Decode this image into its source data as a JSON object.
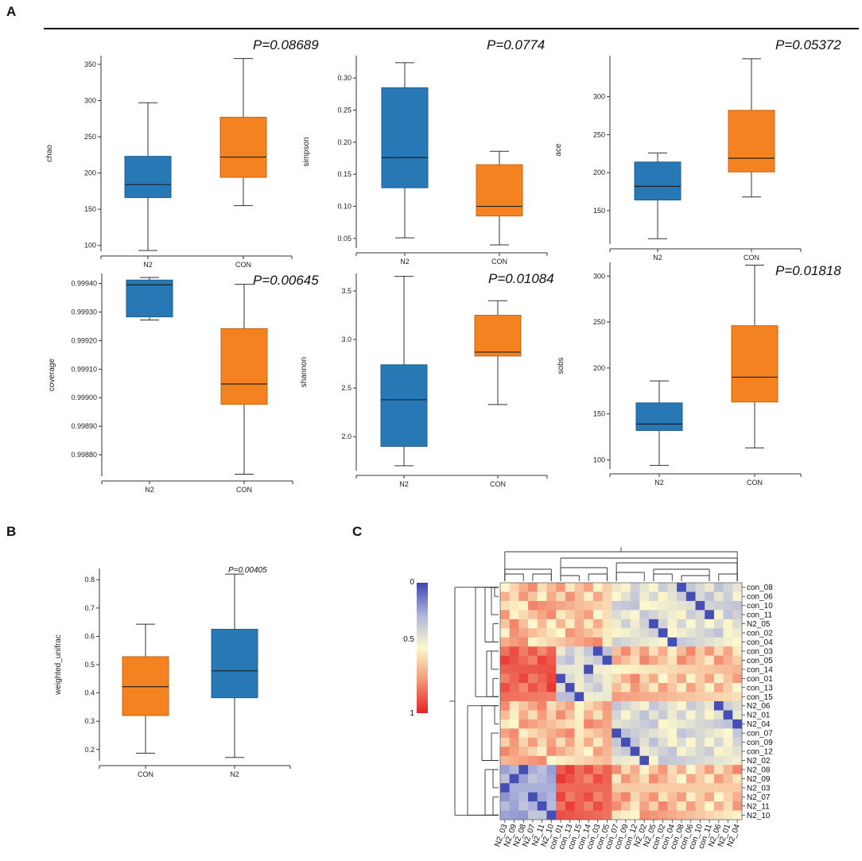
{
  "panel_labels": {
    "A": "A",
    "B": "B",
    "C": "C"
  },
  "colors": {
    "n2": "#2878b5",
    "con": "#f58220",
    "n2_edge": "#1f5e91",
    "con_edge": "#c8650f",
    "axis": "#333333"
  },
  "chart_data": [
    {
      "type": "box",
      "id": "chao",
      "ylabel": "chao",
      "pvalue": "P=0.08689",
      "categories": [
        "N2",
        "CON"
      ],
      "ylim": [
        92,
        362
      ],
      "yticks": [
        100,
        150,
        200,
        250,
        300,
        350
      ],
      "series": [
        {
          "name": "N2",
          "min": 93,
          "q1": 166,
          "median": 184,
          "q3": 223,
          "max": 297
        },
        {
          "name": "CON",
          "min": 155,
          "q1": 194,
          "median": 222,
          "q3": 277,
          "max": 358
        }
      ]
    },
    {
      "type": "box",
      "id": "simpson",
      "ylabel": "simpson",
      "pvalue": "P=0.0774",
      "categories": [
        "N2",
        "CON"
      ],
      "ylim": [
        0.035,
        0.335
      ],
      "yticks": [
        0.05,
        0.1,
        0.15,
        0.2,
        0.25,
        0.3
      ],
      "ytick_labels": [
        "0.05",
        "0.10",
        "0.15",
        "0.20",
        "0.25",
        "0.30"
      ],
      "series": [
        {
          "name": "N2",
          "min": 0.051,
          "q1": 0.129,
          "median": 0.176,
          "q3": 0.285,
          "max": 0.324
        },
        {
          "name": "CON",
          "min": 0.04,
          "q1": 0.085,
          "median": 0.1,
          "q3": 0.165,
          "max": 0.186
        }
      ]
    },
    {
      "type": "box",
      "id": "ace",
      "ylabel": "ace",
      "pvalue": "P=0.05372",
      "categories": [
        "N2",
        "CON"
      ],
      "ylim": [
        106,
        354
      ],
      "yticks": [
        150,
        200,
        250,
        300
      ],
      "series": [
        {
          "name": "N2",
          "min": 113,
          "q1": 164,
          "median": 182,
          "q3": 214,
          "max": 226
        },
        {
          "name": "CON",
          "min": 168,
          "q1": 201,
          "median": 219,
          "q3": 282,
          "max": 350
        }
      ]
    },
    {
      "type": "box",
      "id": "coverage",
      "ylabel": "coverage",
      "pvalue": "P=0.00645",
      "categories": [
        "N2",
        "CON"
      ],
      "ylim": [
        0.998725,
        0.999435
      ],
      "yticks": [
        0.9988,
        0.9989,
        0.999,
        0.9991,
        0.9992,
        0.9993,
        0.9994
      ],
      "ytick_labels": [
        "0.99880",
        "0.99890",
        "0.99900",
        "0.99910",
        "0.99920",
        "0.99930",
        "0.99940"
      ],
      "series": [
        {
          "name": "N2",
          "min": 0.999272,
          "q1": 0.999283,
          "median": 0.999395,
          "q3": 0.999412,
          "max": 0.999421
        },
        {
          "name": "CON",
          "min": 0.998732,
          "q1": 0.998977,
          "median": 0.999048,
          "q3": 0.999242,
          "max": 0.999397
        }
      ]
    },
    {
      "type": "box",
      "id": "shannon",
      "ylabel": "shannon",
      "pvalue": "P=0.01084",
      "categories": [
        "N2",
        "CON"
      ],
      "ylim": [
        1.65,
        3.68
      ],
      "yticks": [
        2.0,
        2.5,
        3.0,
        3.5
      ],
      "ytick_labels": [
        "2.0",
        "2.5",
        "3.0",
        "3.5"
      ],
      "series": [
        {
          "name": "N2",
          "min": 1.7,
          "q1": 1.9,
          "median": 2.38,
          "q3": 2.74,
          "max": 3.65
        },
        {
          "name": "CON",
          "min": 2.33,
          "q1": 2.83,
          "median": 2.87,
          "q3": 3.25,
          "max": 3.4
        }
      ]
    },
    {
      "type": "box",
      "id": "sobs",
      "ylabel": "sobs",
      "pvalue": "P=0.01818",
      "categories": [
        "N2",
        "CON"
      ],
      "ylim": [
        90,
        315
      ],
      "yticks": [
        100,
        150,
        200,
        250,
        300
      ],
      "series": [
        {
          "name": "N2",
          "min": 94,
          "q1": 132,
          "median": 139,
          "q3": 162,
          "max": 186
        },
        {
          "name": "CON",
          "min": 113,
          "q1": 163,
          "median": 190,
          "q3": 246,
          "max": 312
        }
      ]
    },
    {
      "type": "box",
      "id": "weighted_unifrac",
      "ylabel": "weighted_unifrac",
      "pvalue": "P=0.00405",
      "categories": [
        "CON",
        "N2"
      ],
      "ylim": [
        0.16,
        0.84
      ],
      "yticks": [
        0.2,
        0.3,
        0.4,
        0.5,
        0.6,
        0.7,
        0.8
      ],
      "ytick_labels": [
        "0.2",
        "0.3",
        "0.4",
        "0.5",
        "0.6",
        "0.7",
        "0.8"
      ],
      "series": [
        {
          "name": "CON",
          "min": 0.187,
          "q1": 0.32,
          "median": 0.422,
          "q3": 0.528,
          "max": 0.643
        },
        {
          "name": "N2",
          "min": 0.172,
          "q1": 0.383,
          "median": 0.478,
          "q3": 0.625,
          "max": 0.82
        }
      ]
    },
    {
      "type": "heatmap",
      "id": "distance_heatmap",
      "legend_ticks": [
        "0",
        "0.5",
        "1"
      ],
      "row_labels": [
        "con_08",
        "con_06",
        "con_10",
        "con_11",
        "N2_05",
        "con_02",
        "con_04",
        "con_03",
        "con_05",
        "con_14",
        "con_01",
        "con_13",
        "con_15",
        "N2_06",
        "N2_01",
        "N2_04",
        "con_07",
        "con_09",
        "con_12",
        "N2_02",
        "N2_08",
        "N2_09",
        "N2_03",
        "N2_07",
        "N2_11",
        "N2_10"
      ],
      "col_labels": [
        "N2_03",
        "N2_09",
        "N2_08",
        "N2_07",
        "N2_11",
        "N2_10",
        "con_01",
        "con_13",
        "con_15",
        "con_14",
        "con_03",
        "con_05",
        "con_07",
        "con_09",
        "con_12",
        "N2_02",
        "N2_05",
        "con_02",
        "con_04",
        "con_08",
        "con_06",
        "con_10",
        "con_11",
        "N2_06",
        "N2_01",
        "N2_04"
      ]
    }
  ]
}
